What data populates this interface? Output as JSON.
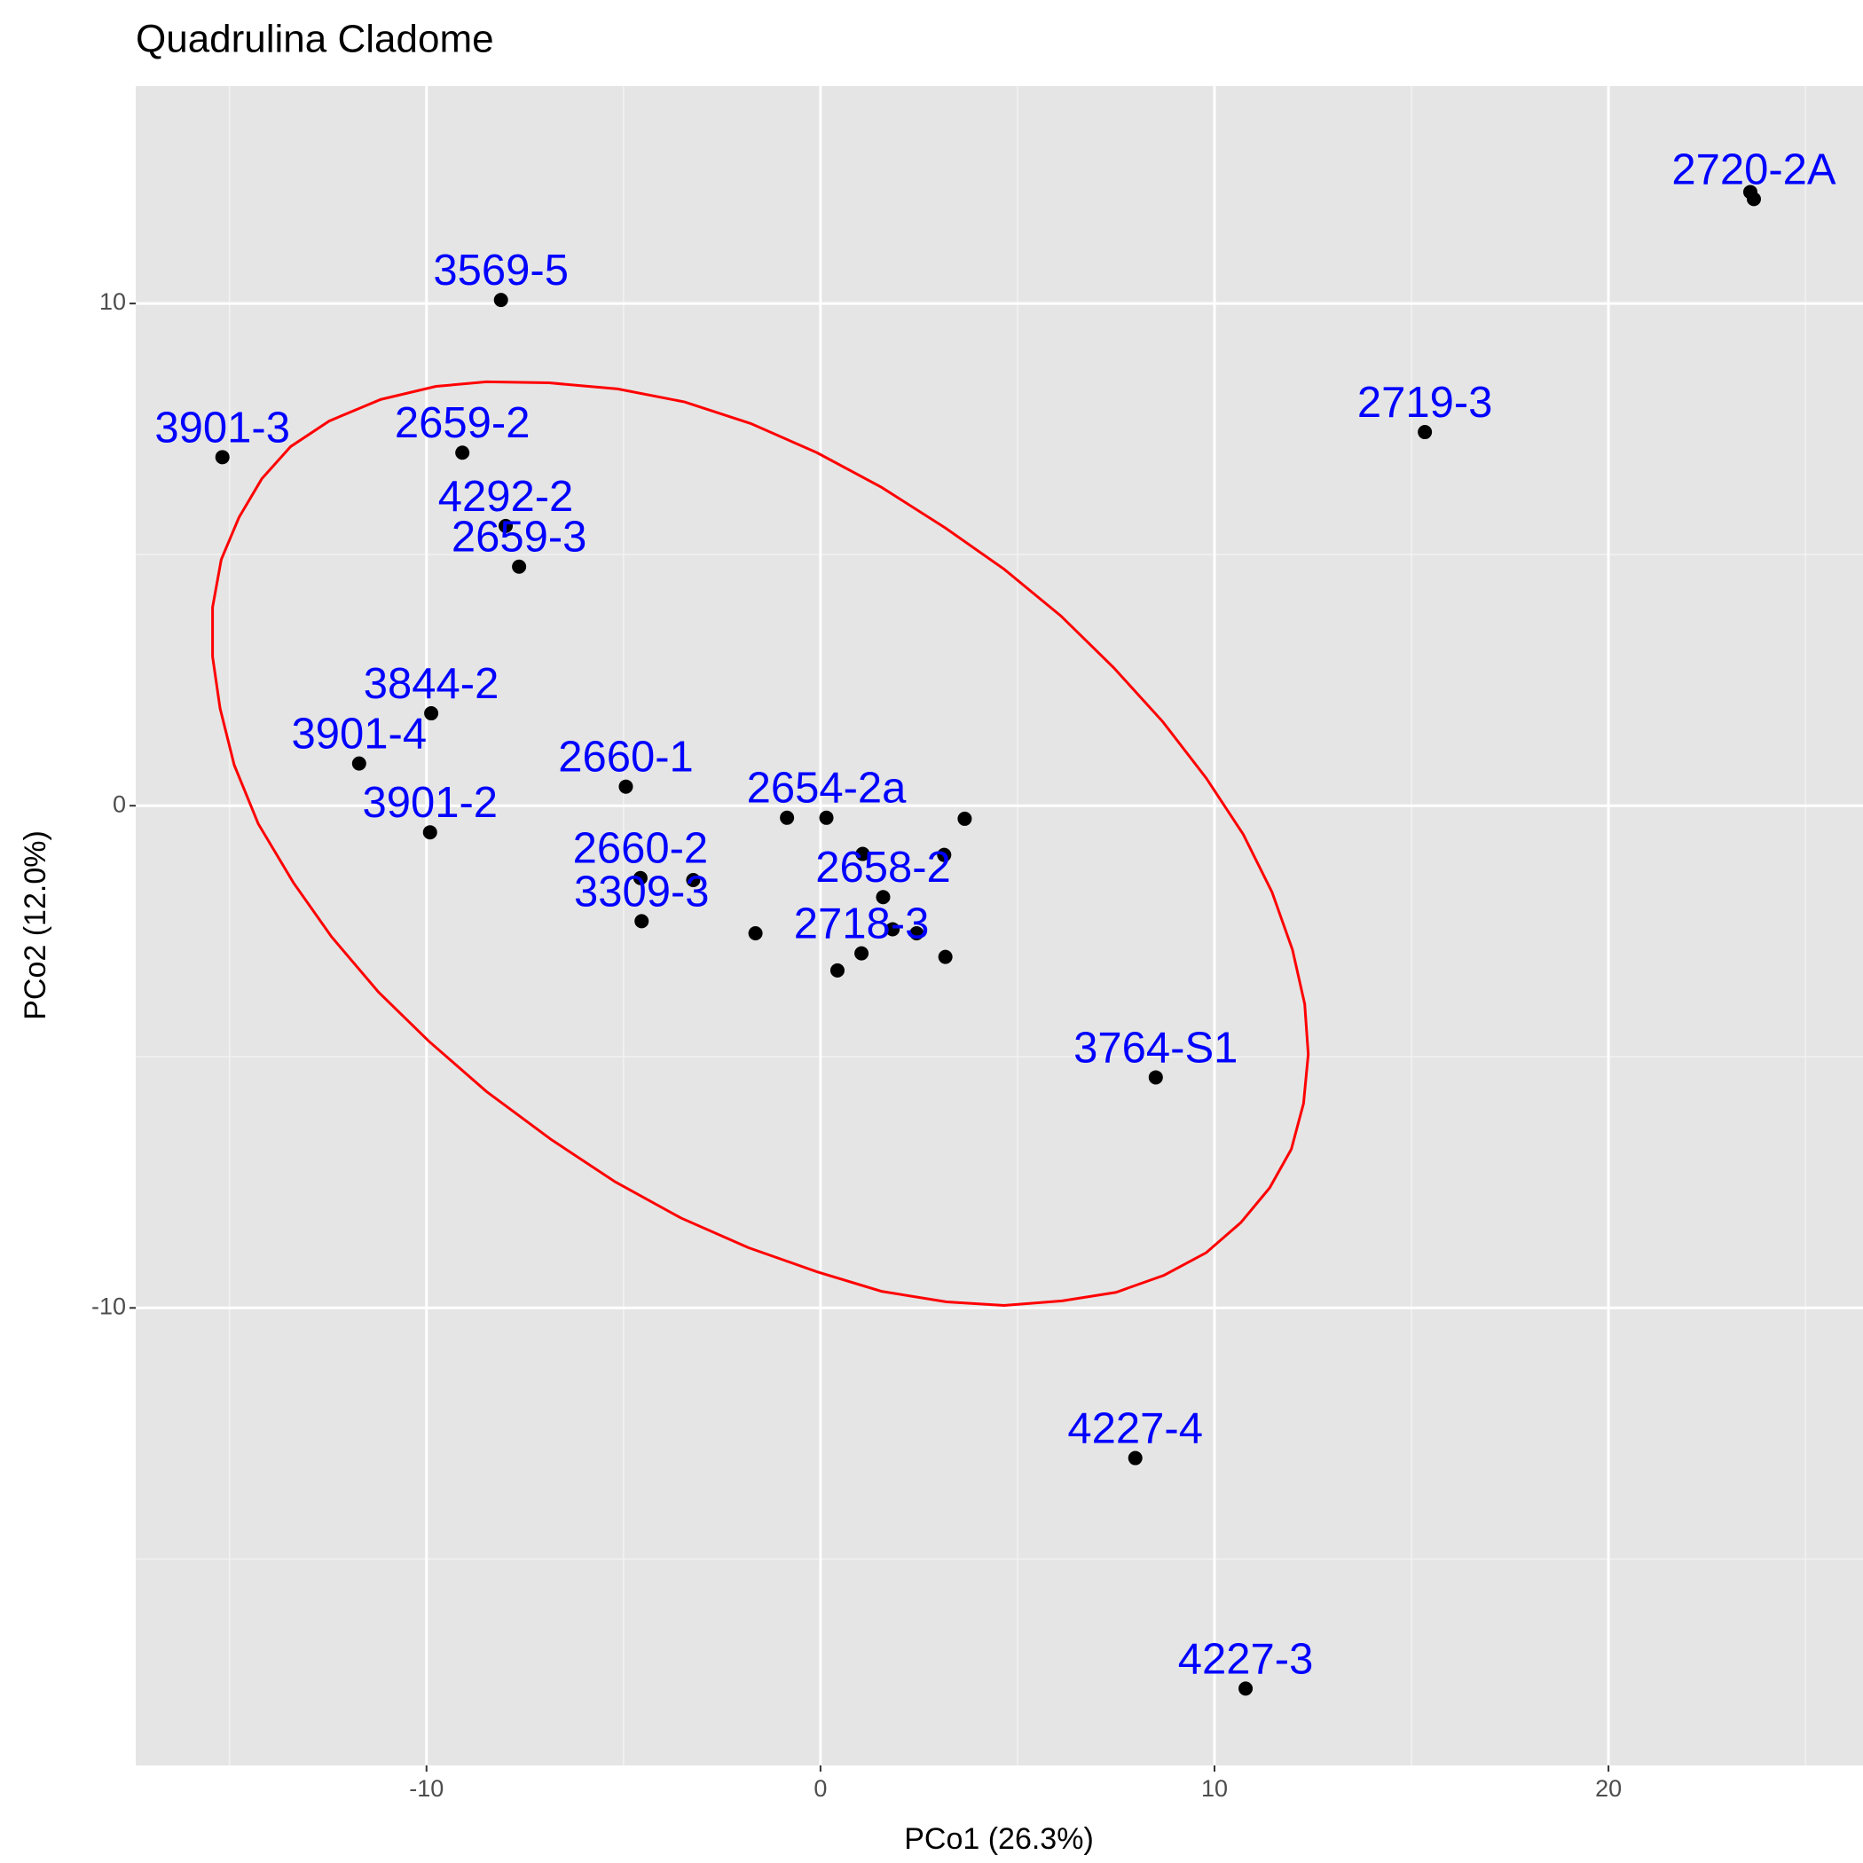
{
  "chart_data": {
    "type": "scatter",
    "title": "Quadrulina Cladome",
    "x_label": "PCo1 (26.3%)",
    "y_label": "PCo2 (12.0%)",
    "xlim": [
      -17.38,
      26.46
    ],
    "ylim": [
      -19.11,
      14.33
    ],
    "xticks": [
      -10,
      0,
      10,
      20
    ],
    "yticks": [
      -10,
      0,
      10
    ],
    "x_minor_ticks": [
      -15,
      -5,
      5,
      15,
      25
    ],
    "y_minor_ticks": [
      -15,
      -5,
      5
    ],
    "grid": true,
    "point_color": "#000000",
    "label_color": "#0000ff",
    "x": [
      -15.18,
      -8.11,
      -9.09,
      -7.99,
      -7.65,
      -9.88,
      -11.71,
      -9.91,
      -4.94,
      0.15,
      -0.85,
      3.66,
      1.07,
      3.14,
      1.59,
      1.83,
      2.44,
      1.04,
      3.17,
      0.43,
      -4.57,
      -3.23,
      -4.54,
      -1.65,
      8.51,
      7.99,
      10.79,
      15.34,
      23.69,
      23.6
    ],
    "y": [
      6.94,
      10.07,
      7.03,
      5.57,
      4.76,
      1.84,
      0.84,
      -0.53,
      0.38,
      -0.24,
      -0.24,
      -0.26,
      -0.96,
      -0.98,
      -1.82,
      -2.46,
      -2.54,
      -2.94,
      -3.01,
      -3.28,
      -1.44,
      -1.48,
      -2.3,
      -2.54,
      -5.41,
      -12.99,
      -17.58,
      7.44,
      12.08,
      12.22
    ],
    "labels": [
      "3901-3",
      "3569-5",
      "2659-2",
      "4292-2",
      "2659-3",
      "3844-2",
      "3901-4",
      "3901-2",
      "2660-1",
      "2654-2a",
      null,
      null,
      null,
      null,
      "2658-2",
      null,
      null,
      "2718-3",
      null,
      null,
      "2660-2",
      null,
      "3309-3",
      null,
      "3764-S1",
      "4227-4",
      "4227-3",
      "2719-3",
      "2720-2A",
      null
    ],
    "ellipse": {
      "color": "#ff0000",
      "x": [
        -15.43,
        -15.24,
        -14.88,
        -14.27,
        -13.38,
        -12.41,
        -11.22,
        -9.94,
        -8.48,
        -6.83,
        -5.21,
        -3.54,
        -1.83,
        -0.09,
        1.55,
        3.2,
        4.66,
        6.13,
        7.5,
        8.72,
        9.79,
        10.67,
        11.4,
        11.95,
        12.26,
        12.38,
        12.29,
        11.98,
        11.46,
        10.73,
        9.79,
        8.69,
        7.44,
        6.1,
        4.66,
        3.17,
        1.55,
        -0.09,
        -1.77,
        -3.45,
        -5.15,
        -6.89,
        -8.48,
        -9.76,
        -11.16,
        -12.47,
        -13.45,
        -14.18,
        -14.76,
        -15.21,
        -15.43,
        -15.43
      ],
      "y": [
        2.97,
        1.94,
        0.81,
        -0.36,
        -1.53,
        -2.61,
        -3.71,
        -4.69,
        -5.69,
        -6.65,
        -7.49,
        -8.21,
        -8.8,
        -9.28,
        -9.67,
        -9.88,
        -9.95,
        -9.86,
        -9.69,
        -9.35,
        -8.9,
        -8.3,
        -7.61,
        -6.84,
        -5.93,
        -4.95,
        -3.95,
        -2.87,
        -1.72,
        -0.57,
        0.55,
        1.67,
        2.75,
        3.78,
        4.71,
        5.53,
        6.34,
        7.03,
        7.61,
        8.04,
        8.3,
        8.42,
        8.44,
        8.35,
        8.09,
        7.66,
        7.15,
        6.51,
        5.74,
        4.9,
        3.95,
        2.97
      ]
    }
  }
}
